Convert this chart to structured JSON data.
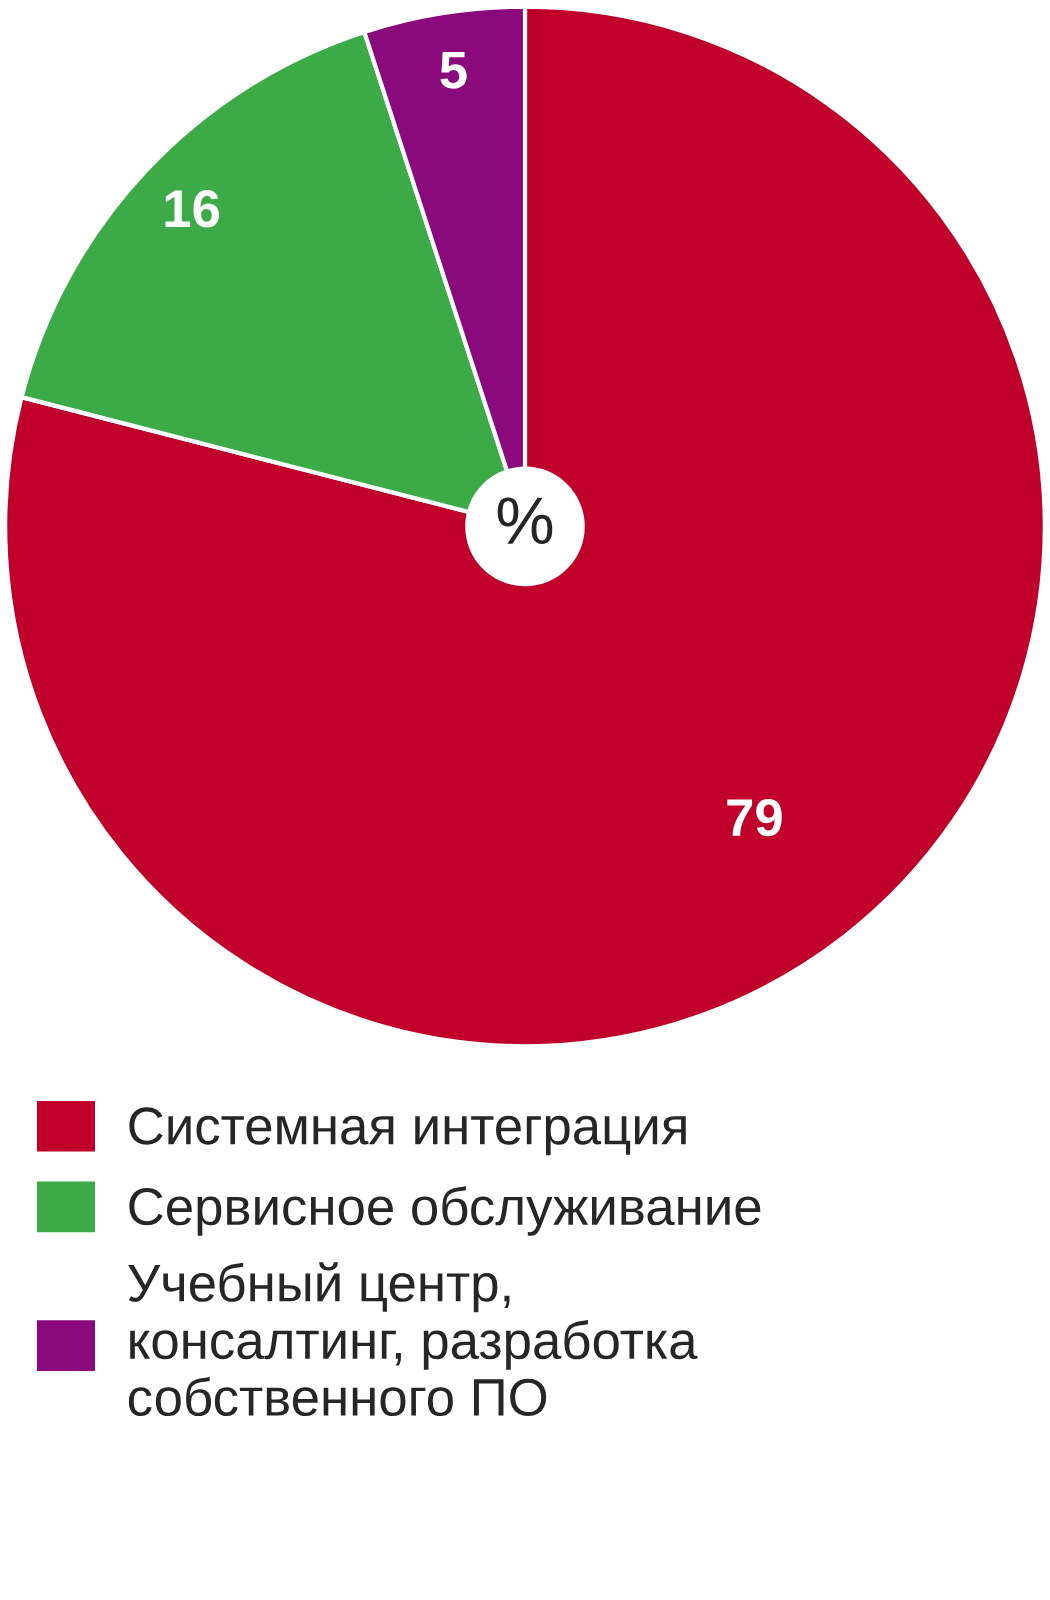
{
  "chart_data": {
    "type": "pie",
    "categories": [
      "Системная интеграция",
      "Сервисное обслуживание",
      "Учебный центр,\nконсалтинг, разработка\nсобственного ПО"
    ],
    "values": [
      79,
      16,
      5
    ],
    "colors": [
      "#c0002a",
      "#3daa48",
      "#8a0a7e"
    ],
    "data_labels": true,
    "annotations": [
      "%"
    ],
    "legend": "bottom"
  }
}
